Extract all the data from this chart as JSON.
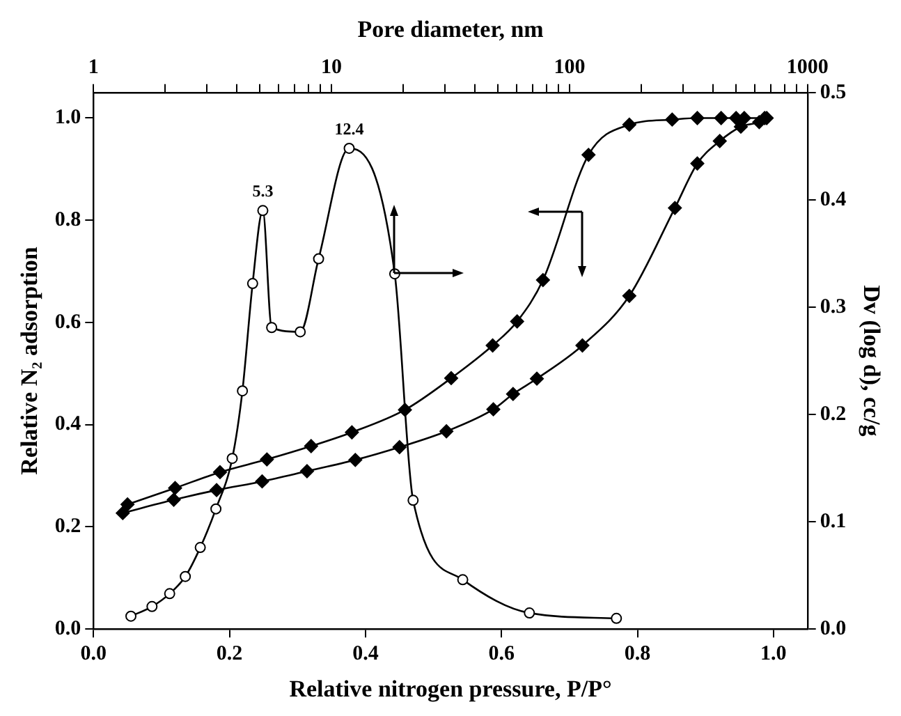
{
  "chart_data": {
    "type": "line",
    "xlabel": "Relative nitrogen pressure, P/P°",
    "x2label": "Pore diameter, nm",
    "ylabel": "Relative N₂ adsorption",
    "y2label": "Dv (log d), cc/g",
    "xlim": [
      0,
      1.05
    ],
    "xticks": [
      {
        "value": 0,
        "label": "0.0"
      },
      {
        "value": 0.2,
        "label": "0.2"
      },
      {
        "value": 0.4,
        "label": "0.4"
      },
      {
        "value": 0.6,
        "label": "0.6"
      },
      {
        "value": 0.8,
        "label": "0.8"
      },
      {
        "value": 1,
        "label": "1.0"
      }
    ],
    "x2lim": [
      1,
      1000
    ],
    "x2ticks": [
      1,
      {
        "value": 2,
        "label": null
      },
      {
        "value": 3,
        "label": null
      },
      {
        "value": 4,
        "label": null
      },
      {
        "value": 5,
        "label": null
      },
      {
        "value": 6,
        "label": null
      },
      {
        "value": 7,
        "label": null
      },
      {
        "value": 8,
        "label": null
      },
      {
        "value": 9,
        "label": null
      },
      10,
      {
        "value": 20,
        "label": null
      },
      {
        "value": 30,
        "label": null
      },
      {
        "value": 40,
        "label": null
      },
      {
        "value": 50,
        "label": null
      },
      {
        "value": 60,
        "label": null
      },
      {
        "value": 70,
        "label": null
      },
      {
        "value": 80,
        "label": null
      },
      {
        "value": 90,
        "label": null
      },
      100,
      {
        "value": 200,
        "label": null
      },
      {
        "value": 300,
        "label": null
      },
      {
        "value": 400,
        "label": null
      },
      {
        "value": 500,
        "label": null
      },
      {
        "value": 600,
        "label": null
      },
      {
        "value": 700,
        "label": null
      },
      {
        "value": 800,
        "label": null
      },
      {
        "value": 900,
        "label": null
      },
      1000
    ],
    "ylim": [
      0,
      1.05
    ],
    "yticks": [
      {
        "value": 0,
        "label": "0.0"
      },
      {
        "value": 0.2,
        "label": "0.2"
      },
      {
        "value": 0.4,
        "label": "0.4"
      },
      {
        "value": 0.6,
        "label": "0.6"
      },
      {
        "value": 0.8,
        "label": "0.8"
      },
      {
        "value": 1,
        "label": "1.0"
      }
    ],
    "y2lim": [
      0,
      0.5
    ],
    "y2ticks": [
      {
        "value": 0,
        "label": "0.0"
      },
      {
        "value": 0.1,
        "label": "0.1"
      },
      {
        "value": 0.2,
        "label": "0.2"
      },
      {
        "value": 0.3,
        "label": "0.3"
      },
      {
        "value": 0.4,
        "label": "0.4"
      },
      {
        "value": 0.5,
        "label": "0.5"
      }
    ],
    "log": "x2",
    "grid": false,
    "legend": false,
    "line_style": "solid",
    "series": [
      {
        "color": "#000000",
        "marker": "circle",
        "axis": "y2",
        "x": [
          0.055,
          0.086,
          0.112,
          0.135,
          0.157,
          0.18,
          0.204,
          0.219,
          0.234,
          0.249,
          0.262,
          0.304,
          0.331,
          0.376,
          0.443,
          0.47,
          0.543,
          0.641,
          0.769
        ],
        "values": [
          0.012,
          0.021,
          0.033,
          0.049,
          0.076,
          0.112,
          0.159,
          0.222,
          0.322,
          0.39,
          0.281,
          0.277,
          0.345,
          0.448,
          0.331,
          0.12,
          0.046,
          0.015,
          0.01
        ]
      },
      {
        "color": "#000000",
        "marker": "diamond",
        "x": [
          0.043,
          0.118,
          0.181,
          0.248,
          0.314,
          0.385,
          0.45,
          0.519,
          0.588,
          0.617,
          0.652,
          0.719,
          0.788,
          0.855,
          0.888,
          0.921,
          0.952,
          0.979,
          0.99
        ],
        "values": [
          0.227,
          0.253,
          0.272,
          0.289,
          0.309,
          0.331,
          0.356,
          0.387,
          0.43,
          0.46,
          0.49,
          0.555,
          0.652,
          0.824,
          0.911,
          0.955,
          0.983,
          0.992,
          1.0
        ]
      },
      {
        "color": "#000000",
        "marker": "diamond",
        "x": [
          0.05,
          0.12,
          0.186,
          0.255,
          0.32,
          0.38,
          0.458,
          0.526,
          0.587,
          0.623,
          0.661,
          0.728,
          0.788,
          0.851,
          0.888,
          0.923,
          0.945,
          0.957,
          0.987
        ],
        "values": [
          0.244,
          0.276,
          0.307,
          0.332,
          0.358,
          0.385,
          0.429,
          0.491,
          0.555,
          0.602,
          0.683,
          0.928,
          0.987,
          0.997,
          1.0,
          1.0,
          1.0,
          1.0,
          1.0
        ]
      }
    ],
    "annotations": [
      "5.3",
      "12.4"
    ]
  }
}
